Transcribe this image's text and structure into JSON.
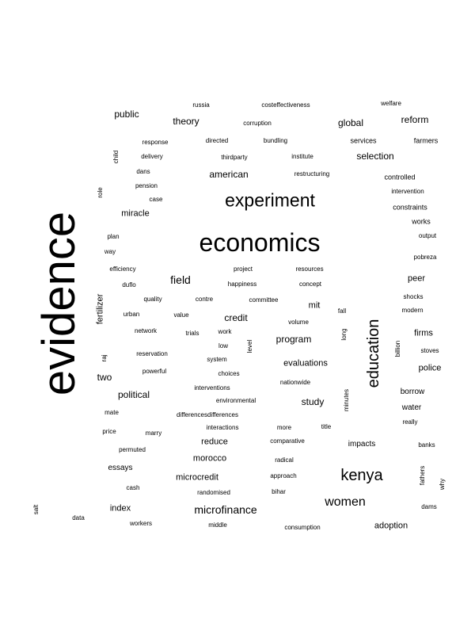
{
  "word_cloud": {
    "text_color": "#000000",
    "background": "#ffffff",
    "words": [
      {
        "text": "evidence"
      },
      {
        "text": "economics"
      },
      {
        "text": "experiment"
      },
      {
        "text": "education"
      },
      {
        "text": "kenya"
      },
      {
        "text": "women"
      },
      {
        "text": "microfinance"
      },
      {
        "text": "field"
      },
      {
        "text": "credit"
      },
      {
        "text": "program"
      },
      {
        "text": "theory"
      },
      {
        "text": "public"
      },
      {
        "text": "global"
      },
      {
        "text": "reform"
      },
      {
        "text": "selection"
      },
      {
        "text": "american"
      },
      {
        "text": "miracle"
      },
      {
        "text": "mit"
      },
      {
        "text": "peer"
      },
      {
        "text": "firms"
      },
      {
        "text": "police"
      },
      {
        "text": "evaluations"
      },
      {
        "text": "study"
      },
      {
        "text": "political"
      },
      {
        "text": "two"
      },
      {
        "text": "morocco"
      },
      {
        "text": "reduce"
      },
      {
        "text": "microcredit"
      },
      {
        "text": "index"
      },
      {
        "text": "adoption"
      },
      {
        "text": "impacts"
      },
      {
        "text": "borrow"
      },
      {
        "text": "water"
      },
      {
        "text": "essays"
      },
      {
        "text": "fertilizer"
      },
      {
        "text": "services"
      },
      {
        "text": "farmers"
      },
      {
        "text": "controlled"
      },
      {
        "text": "constraints"
      },
      {
        "text": "works"
      },
      {
        "text": "russia"
      },
      {
        "text": "costeffectiveness"
      },
      {
        "text": "welfare"
      },
      {
        "text": "corruption"
      },
      {
        "text": "response"
      },
      {
        "text": "directed"
      },
      {
        "text": "bundling"
      },
      {
        "text": "child"
      },
      {
        "text": "delivery"
      },
      {
        "text": "thirdparty"
      },
      {
        "text": "institute"
      },
      {
        "text": "dans"
      },
      {
        "text": "restructuring"
      },
      {
        "text": "pension"
      },
      {
        "text": "role"
      },
      {
        "text": "case"
      },
      {
        "text": "intervention"
      },
      {
        "text": "plan"
      },
      {
        "text": "output"
      },
      {
        "text": "way"
      },
      {
        "text": "pobreza"
      },
      {
        "text": "efficiency"
      },
      {
        "text": "project"
      },
      {
        "text": "resources"
      },
      {
        "text": "duflo"
      },
      {
        "text": "happiness"
      },
      {
        "text": "concept"
      },
      {
        "text": "shocks"
      },
      {
        "text": "quality"
      },
      {
        "text": "contre"
      },
      {
        "text": "committee"
      },
      {
        "text": "modern"
      },
      {
        "text": "urban"
      },
      {
        "text": "value"
      },
      {
        "text": "fall"
      },
      {
        "text": "volume"
      },
      {
        "text": "network"
      },
      {
        "text": "trials"
      },
      {
        "text": "work"
      },
      {
        "text": "long"
      },
      {
        "text": "low"
      },
      {
        "text": "level"
      },
      {
        "text": "raj"
      },
      {
        "text": "reservation"
      },
      {
        "text": "billion"
      },
      {
        "text": "stoves"
      },
      {
        "text": "system"
      },
      {
        "text": "powerful"
      },
      {
        "text": "choices"
      },
      {
        "text": "nationwide"
      },
      {
        "text": "interventions"
      },
      {
        "text": "environmental"
      },
      {
        "text": "minutes"
      },
      {
        "text": "mate"
      },
      {
        "text": "differencesdifferences"
      },
      {
        "text": "really"
      },
      {
        "text": "price"
      },
      {
        "text": "marry"
      },
      {
        "text": "interactions"
      },
      {
        "text": "more"
      },
      {
        "text": "title"
      },
      {
        "text": "comparative"
      },
      {
        "text": "banks"
      },
      {
        "text": "permuted"
      },
      {
        "text": "radical"
      },
      {
        "text": "approach"
      },
      {
        "text": "fathers"
      },
      {
        "text": "why"
      },
      {
        "text": "cash"
      },
      {
        "text": "randomised"
      },
      {
        "text": "bihar"
      },
      {
        "text": "dams"
      },
      {
        "text": "salt"
      },
      {
        "text": "data"
      },
      {
        "text": "workers"
      },
      {
        "text": "middle"
      },
      {
        "text": "consumption"
      }
    ]
  }
}
